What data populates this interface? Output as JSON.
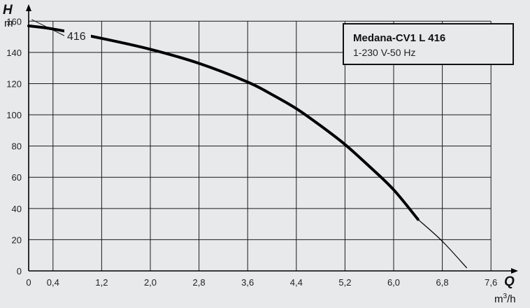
{
  "chart_data": {
    "type": "line",
    "y_axis_letter": "H",
    "y_unit": "m",
    "x_axis_letter": "Q",
    "x_unit_base": "m",
    "x_unit_exp": "3",
    "x_unit_tail": "/h",
    "xlim": [
      0,
      8.0
    ],
    "ylim": [
      0,
      170
    ],
    "x_ticks": [
      0,
      0.4,
      1.2,
      2.0,
      2.8,
      3.6,
      4.4,
      5.2,
      6.0,
      6.8,
      7.6
    ],
    "x_tick_labels": [
      "0",
      "0,4",
      "1,2",
      "2,0",
      "2,8",
      "3,6",
      "4,4",
      "5,2",
      "6,0",
      "6,8",
      "7,6"
    ],
    "y_ticks": [
      0,
      20,
      40,
      60,
      80,
      100,
      120,
      140,
      160
    ],
    "y_tick_labels": [
      "0",
      "20",
      "40",
      "60",
      "80",
      "100",
      "120",
      "140",
      "160"
    ],
    "grid": true,
    "legend": {
      "title": "Medana-CV1 L 416",
      "subtitle": "1-230 V-50 Hz",
      "placement": "top-right"
    },
    "series": [
      {
        "name": "416",
        "style": "thick",
        "x": [
          0,
          0.4,
          1.2,
          2.0,
          2.8,
          3.6,
          4.0,
          4.4,
          4.8,
          5.2,
          5.6,
          6.0,
          6.4
        ],
        "y": [
          157,
          155,
          149,
          142,
          133,
          121,
          113,
          104,
          93,
          81,
          67,
          52,
          33
        ]
      },
      {
        "name": "",
        "style": "thin",
        "x": [
          6.4,
          6.8,
          7.2
        ],
        "y": [
          33,
          19,
          2
        ]
      }
    ],
    "colors": {
      "curve": "#000000",
      "grid": "#1a1a1a",
      "axis": "#000000",
      "background": "#e8e9ea"
    }
  }
}
